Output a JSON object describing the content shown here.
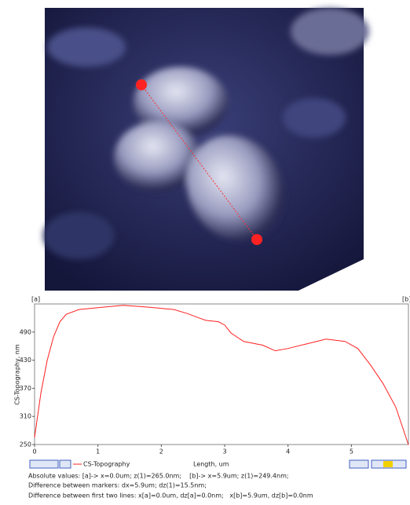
{
  "chart_data": {
    "type": "line",
    "x_label": "Length, um",
    "y_label": "CS-Topography, nm",
    "markers": [
      "[a]",
      "[b]"
    ],
    "x": [
      0,
      0.1,
      0.2,
      0.3,
      0.4,
      0.5,
      0.7,
      1.0,
      1.4,
      1.8,
      2.2,
      2.4,
      2.7,
      2.9,
      3.0,
      3.1,
      3.3,
      3.6,
      3.8,
      4.0,
      4.3,
      4.6,
      4.9,
      5.1,
      5.3,
      5.5,
      5.7,
      5.9
    ],
    "series": [
      {
        "name": "CS-Topography",
        "color": "#ff2020",
        "values": [
          265,
          360,
          430,
          480,
          512,
          528,
          538,
          542,
          547,
          543,
          538,
          530,
          515,
          512,
          505,
          488,
          470,
          462,
          450,
          455,
          465,
          475,
          470,
          455,
          420,
          380,
          330,
          249.4
        ]
      }
    ],
    "xlim": [
      0,
      5.9
    ],
    "xticks": [
      0,
      1,
      2,
      3,
      4,
      5
    ],
    "ylim": [
      250,
      550
    ],
    "yticks": [
      250,
      310,
      370,
      430,
      490
    ]
  },
  "status_lines": [
    "Absolute values: [a]-> x=0.0um; z(1)=265.0nm;    [b]-> x=5.9um; z(1)=249.4nm;",
    "Difference between markers: dx=5.9um; dz(1)=15.5nm;",
    "Difference between first two lines: x[a]=0.0um, dz[a]=0.0nm;   x[b]=5.9um, dz[b]=0.0nm"
  ]
}
